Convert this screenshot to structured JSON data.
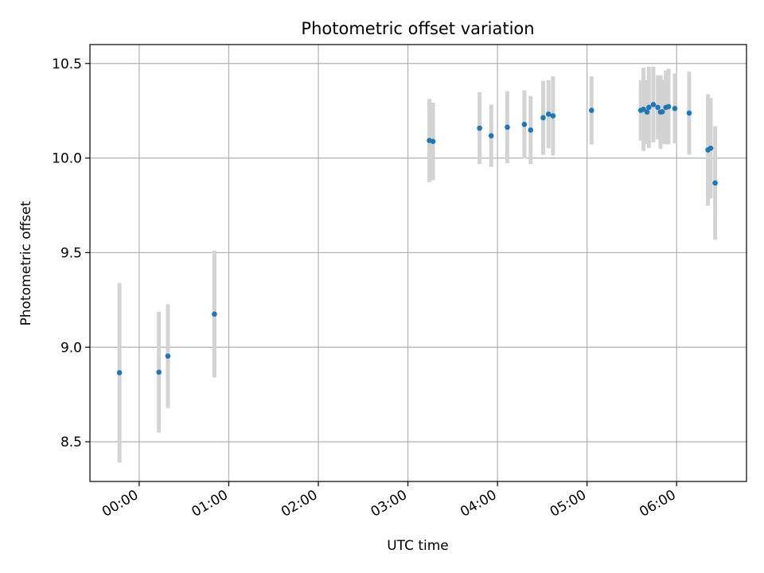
{
  "chart_data": {
    "type": "scatter",
    "title": "Photometric offset variation",
    "xlabel": "UTC time",
    "ylabel": "Photometric offset",
    "x_unit": "hours since 00:00 UTC",
    "xlim": [
      -0.55,
      6.78
    ],
    "ylim": [
      8.29,
      10.6
    ],
    "x_ticks": [
      {
        "value": 0,
        "label": "00:00"
      },
      {
        "value": 1,
        "label": "01:00"
      },
      {
        "value": 2,
        "label": "02:00"
      },
      {
        "value": 3,
        "label": "03:00"
      },
      {
        "value": 4,
        "label": "04:00"
      },
      {
        "value": 5,
        "label": "05:00"
      },
      {
        "value": 6,
        "label": "06:00"
      }
    ],
    "y_ticks": [
      {
        "value": 8.5,
        "label": "8.5"
      },
      {
        "value": 9.0,
        "label": "9.0"
      },
      {
        "value": 9.5,
        "label": "9.5"
      },
      {
        "value": 10.0,
        "label": "10.0"
      },
      {
        "value": 10.5,
        "label": "10.5"
      }
    ],
    "grid": true,
    "marker_color": "#1f77b4",
    "errorbar_color": "#d3d3d3",
    "points": [
      {
        "x": -0.22,
        "y": 8.865,
        "err": 0.475
      },
      {
        "x": 0.22,
        "y": 8.868,
        "err": 0.32
      },
      {
        "x": 0.32,
        "y": 8.953,
        "err": 0.275
      },
      {
        "x": 0.84,
        "y": 9.175,
        "err": 0.335
      },
      {
        "x": 3.24,
        "y": 10.093,
        "err": 0.22
      },
      {
        "x": 3.28,
        "y": 10.088,
        "err": 0.205
      },
      {
        "x": 3.8,
        "y": 10.158,
        "err": 0.19
      },
      {
        "x": 3.93,
        "y": 10.118,
        "err": 0.165
      },
      {
        "x": 4.11,
        "y": 10.163,
        "err": 0.19
      },
      {
        "x": 4.3,
        "y": 10.178,
        "err": 0.18
      },
      {
        "x": 4.37,
        "y": 10.148,
        "err": 0.18
      },
      {
        "x": 4.51,
        "y": 10.213,
        "err": 0.195
      },
      {
        "x": 4.57,
        "y": 10.232,
        "err": 0.18
      },
      {
        "x": 4.62,
        "y": 10.223,
        "err": 0.21
      },
      {
        "x": 5.05,
        "y": 10.252,
        "err": 0.18
      },
      {
        "x": 5.6,
        "y": 10.252,
        "err": 0.16
      },
      {
        "x": 5.63,
        "y": 10.258,
        "err": 0.22
      },
      {
        "x": 5.67,
        "y": 10.243,
        "err": 0.17
      },
      {
        "x": 5.69,
        "y": 10.268,
        "err": 0.215
      },
      {
        "x": 5.74,
        "y": 10.283,
        "err": 0.2
      },
      {
        "x": 5.79,
        "y": 10.268,
        "err": 0.17
      },
      {
        "x": 5.82,
        "y": 10.243,
        "err": 0.195
      },
      {
        "x": 5.84,
        "y": 10.245,
        "err": 0.17
      },
      {
        "x": 5.88,
        "y": 10.268,
        "err": 0.195
      },
      {
        "x": 5.91,
        "y": 10.272,
        "err": 0.2
      },
      {
        "x": 5.98,
        "y": 10.262,
        "err": 0.185
      },
      {
        "x": 6.14,
        "y": 10.238,
        "err": 0.22
      },
      {
        "x": 6.35,
        "y": 10.043,
        "err": 0.295
      },
      {
        "x": 6.38,
        "y": 10.052,
        "err": 0.265
      },
      {
        "x": 6.43,
        "y": 9.868,
        "err": 0.3
      }
    ]
  }
}
